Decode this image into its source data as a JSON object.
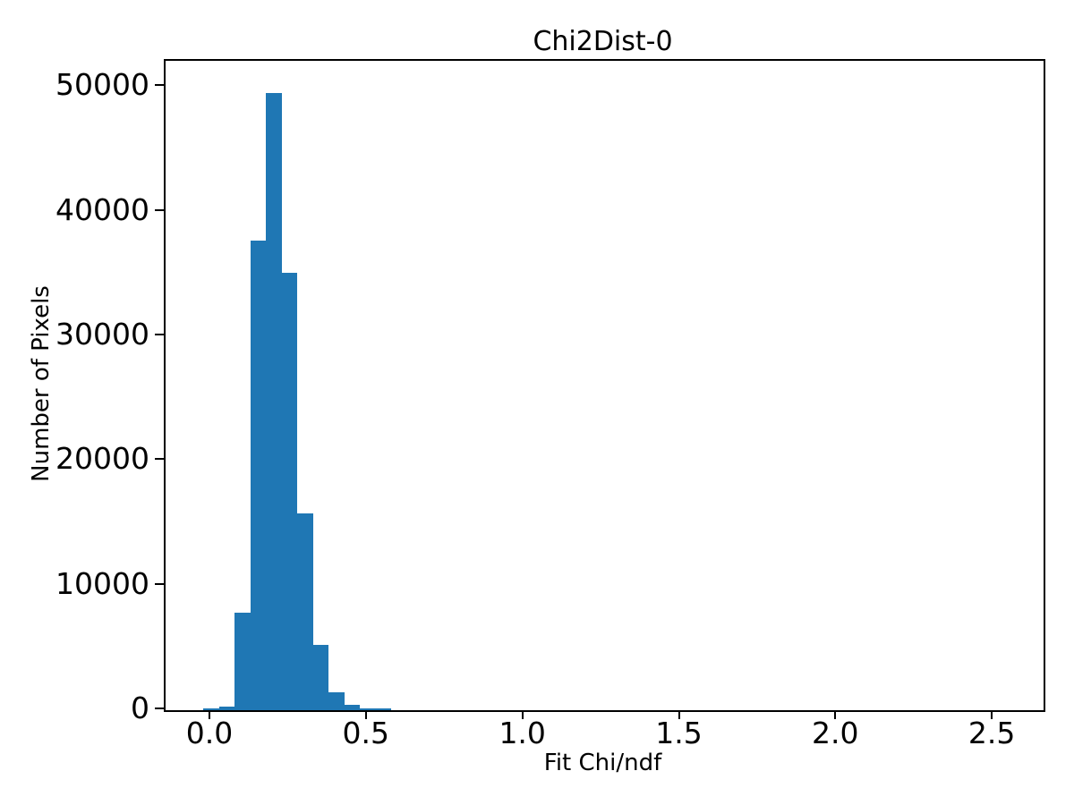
{
  "figure": {
    "title": "Chi2Dist-0",
    "xlabel": "Fit Chi/ndf",
    "ylabel": "Number of Pixels"
  },
  "chart_data": {
    "type": "bar",
    "subtype": "histogram",
    "title": "Chi2Dist-0",
    "xlabel": "Fit Chi/ndf",
    "ylabel": "Number of Pixels",
    "bar_color": "#1f77b4",
    "axis_color": "#000000",
    "background_color": "#ffffff",
    "bin_edges": [
      -0.025,
      0.025,
      0.075,
      0.125,
      0.175,
      0.225,
      0.275,
      0.325,
      0.375,
      0.425,
      0.475,
      0.525,
      0.575
    ],
    "counts": [
      130,
      290,
      7800,
      37700,
      49500,
      35100,
      15800,
      5250,
      1470,
      400,
      140,
      140
    ],
    "xlim": [
      -0.146,
      2.66
    ],
    "ylim": [
      0,
      52100
    ],
    "xticks": [
      0.0,
      0.5,
      1.0,
      1.5,
      2.0,
      2.5
    ],
    "xtick_labels": [
      "0.0",
      "0.5",
      "1.0",
      "1.5",
      "2.0",
      "2.5"
    ],
    "yticks": [
      0,
      10000,
      20000,
      30000,
      40000,
      50000
    ],
    "ytick_labels": [
      "0",
      "10000",
      "20000",
      "30000",
      "40000",
      "50000"
    ],
    "grid": false,
    "legend": null
  }
}
